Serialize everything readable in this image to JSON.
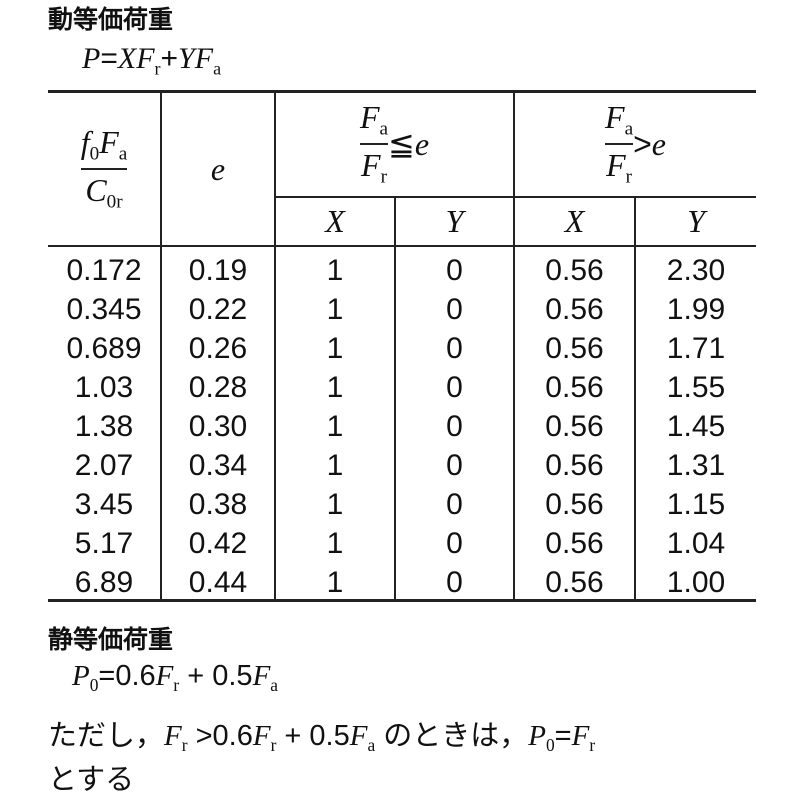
{
  "dynamic": {
    "heading": "動等価荷重",
    "formula": [
      {
        "t": "P",
        "i": true
      },
      {
        "t": "="
      },
      {
        "t": "X",
        "i": true
      },
      {
        "t": "F",
        "i": true
      },
      {
        "t": "r",
        "sub": true
      },
      {
        "t": "+"
      },
      {
        "t": "Y",
        "i": true
      },
      {
        "t": "F",
        "i": true
      },
      {
        "t": "a",
        "sub": true
      }
    ]
  },
  "table": {
    "col1_num": [
      {
        "t": "f",
        "i": true
      },
      {
        "t": "0",
        "sub": true
      },
      {
        "t": "F",
        "i": true
      },
      {
        "t": "a",
        "sub": true
      }
    ],
    "col1_den": [
      {
        "t": "C",
        "i": true
      },
      {
        "t": "0r",
        "sub": true
      }
    ],
    "col2": "e",
    "group1": {
      "num": [
        {
          "t": "F",
          "i": true
        },
        {
          "t": "a",
          "sub": true
        }
      ],
      "den": [
        {
          "t": "F",
          "i": true
        },
        {
          "t": "r",
          "sub": true
        }
      ],
      "rel": "≦",
      "e": "e"
    },
    "group2": {
      "num": [
        {
          "t": "F",
          "i": true
        },
        {
          "t": "a",
          "sub": true
        }
      ],
      "den": [
        {
          "t": "F",
          "i": true
        },
        {
          "t": "r",
          "sub": true
        }
      ],
      "rel": ">",
      "e": "e"
    },
    "sub_headers": [
      "X",
      "Y",
      "X",
      "Y"
    ],
    "rows": [
      [
        "0.172",
        "0.19",
        "1",
        "0",
        "0.56",
        "2.30"
      ],
      [
        "0.345",
        "0.22",
        "1",
        "0",
        "0.56",
        "1.99"
      ],
      [
        "0.689",
        "0.26",
        "1",
        "0",
        "0.56",
        "1.71"
      ],
      [
        "1.03",
        "0.28",
        "1",
        "0",
        "0.56",
        "1.55"
      ],
      [
        "1.38",
        "0.30",
        "1",
        "0",
        "0.56",
        "1.45"
      ],
      [
        "2.07",
        "0.34",
        "1",
        "0",
        "0.56",
        "1.31"
      ],
      [
        "3.45",
        "0.38",
        "1",
        "0",
        "0.56",
        "1.15"
      ],
      [
        "5.17",
        "0.42",
        "1",
        "0",
        "0.56",
        "1.04"
      ],
      [
        "6.89",
        "0.44",
        "1",
        "0",
        "0.56",
        "1.00"
      ]
    ]
  },
  "static": {
    "heading": "静等価荷重",
    "formula": [
      {
        "t": "P",
        "i": true
      },
      {
        "t": "0",
        "sub": true
      },
      {
        "t": "=0.6",
        "n": true
      },
      {
        "t": "F",
        "i": true
      },
      {
        "t": "r",
        "sub": true
      },
      {
        "t": " + 0.5",
        "n": true
      },
      {
        "t": "F",
        "i": true
      },
      {
        "t": "a",
        "sub": true
      }
    ],
    "note_line1": [
      {
        "t": "ただし，"
      },
      {
        "t": "F",
        "i": true
      },
      {
        "t": "r",
        "sub": true
      },
      {
        "t": " >0.6",
        "n": true
      },
      {
        "t": "F",
        "i": true
      },
      {
        "t": "r",
        "sub": true
      },
      {
        "t": " + 0.5",
        "n": true
      },
      {
        "t": "F",
        "i": true
      },
      {
        "t": "a",
        "sub": true
      },
      {
        "t": " のときは，"
      },
      {
        "t": "P",
        "i": true
      },
      {
        "t": "0",
        "sub": true
      },
      {
        "t": "="
      },
      {
        "t": "F",
        "i": true
      },
      {
        "t": "r",
        "sub": true
      }
    ],
    "note_line2": "とする"
  }
}
